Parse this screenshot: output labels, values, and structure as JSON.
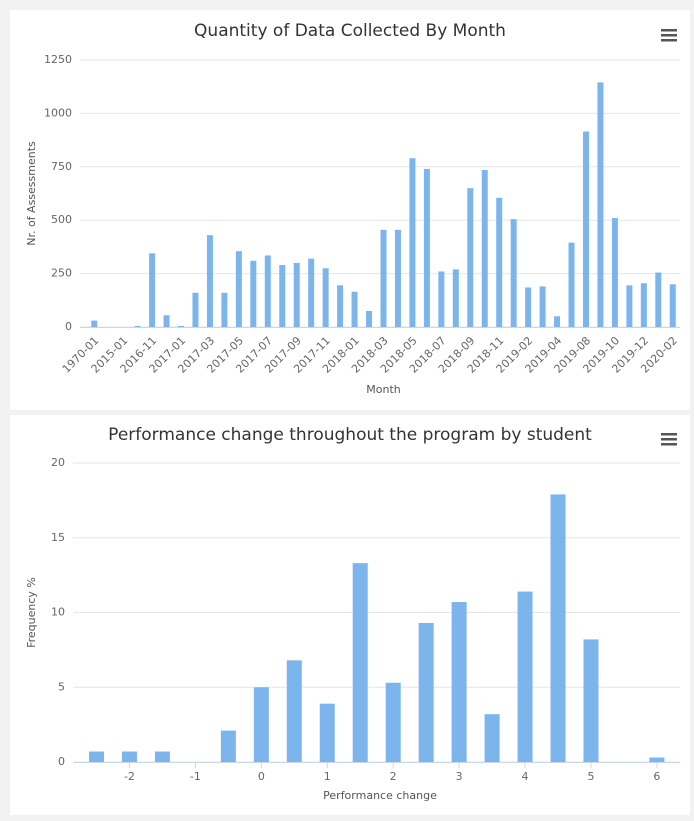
{
  "chart_data": [
    {
      "type": "bar",
      "title": "Quantity of Data Collected By Month",
      "x_label": "Month",
      "y_label": "Nr. of Assessments",
      "categories": [
        "1970-01",
        null,
        "2015-01",
        null,
        "2016-11",
        null,
        "2017-01",
        null,
        "2017-03",
        null,
        "2017-05",
        null,
        "2017-07",
        null,
        "2017-09",
        null,
        "2017-11",
        null,
        "2018-01",
        null,
        "2018-03",
        null,
        "2018-05",
        null,
        "2018-07",
        null,
        "2018-09",
        null,
        "2018-11",
        null,
        "2019-02",
        null,
        "2019-04",
        null,
        "2019-08",
        null,
        "2019-10",
        null,
        "2019-12",
        null,
        "2020-02"
      ],
      "values": [
        30,
        0,
        0,
        5,
        345,
        55,
        5,
        160,
        430,
        160,
        355,
        310,
        335,
        290,
        300,
        320,
        275,
        195,
        165,
        75,
        455,
        455,
        790,
        740,
        260,
        270,
        650,
        735,
        605,
        505,
        185,
        190,
        50,
        395,
        915,
        1145,
        510,
        195,
        205,
        255,
        200
      ],
      "color": "#7cb5ec",
      "ylim": [
        0,
        1250
      ],
      "yticks": [
        0,
        250,
        500,
        750,
        1000,
        1250
      ],
      "grid": true
    },
    {
      "type": "bar",
      "title": "Performance change throughout the program by student",
      "x_label": "Performance change",
      "y_label": "Frequency %",
      "x": [
        -2.5,
        -2,
        -1.5,
        -0.5,
        0,
        0.5,
        1,
        1.5,
        2,
        2.5,
        3,
        3.5,
        4,
        4.5,
        5,
        6
      ],
      "values": [
        0.7,
        0.7,
        0.7,
        2.1,
        5.0,
        6.8,
        3.9,
        13.3,
        5.3,
        9.3,
        10.7,
        3.2,
        11.4,
        17.9,
        8.2,
        0.3
      ],
      "color": "#7cb5ec",
      "xlim": [
        -2.75,
        6.35
      ],
      "xticks": [
        -2,
        -1,
        0,
        1,
        2,
        3,
        4,
        5,
        6
      ],
      "ylim": [
        0,
        20
      ],
      "yticks": [
        0,
        5,
        10,
        15,
        20
      ],
      "grid": true
    }
  ]
}
